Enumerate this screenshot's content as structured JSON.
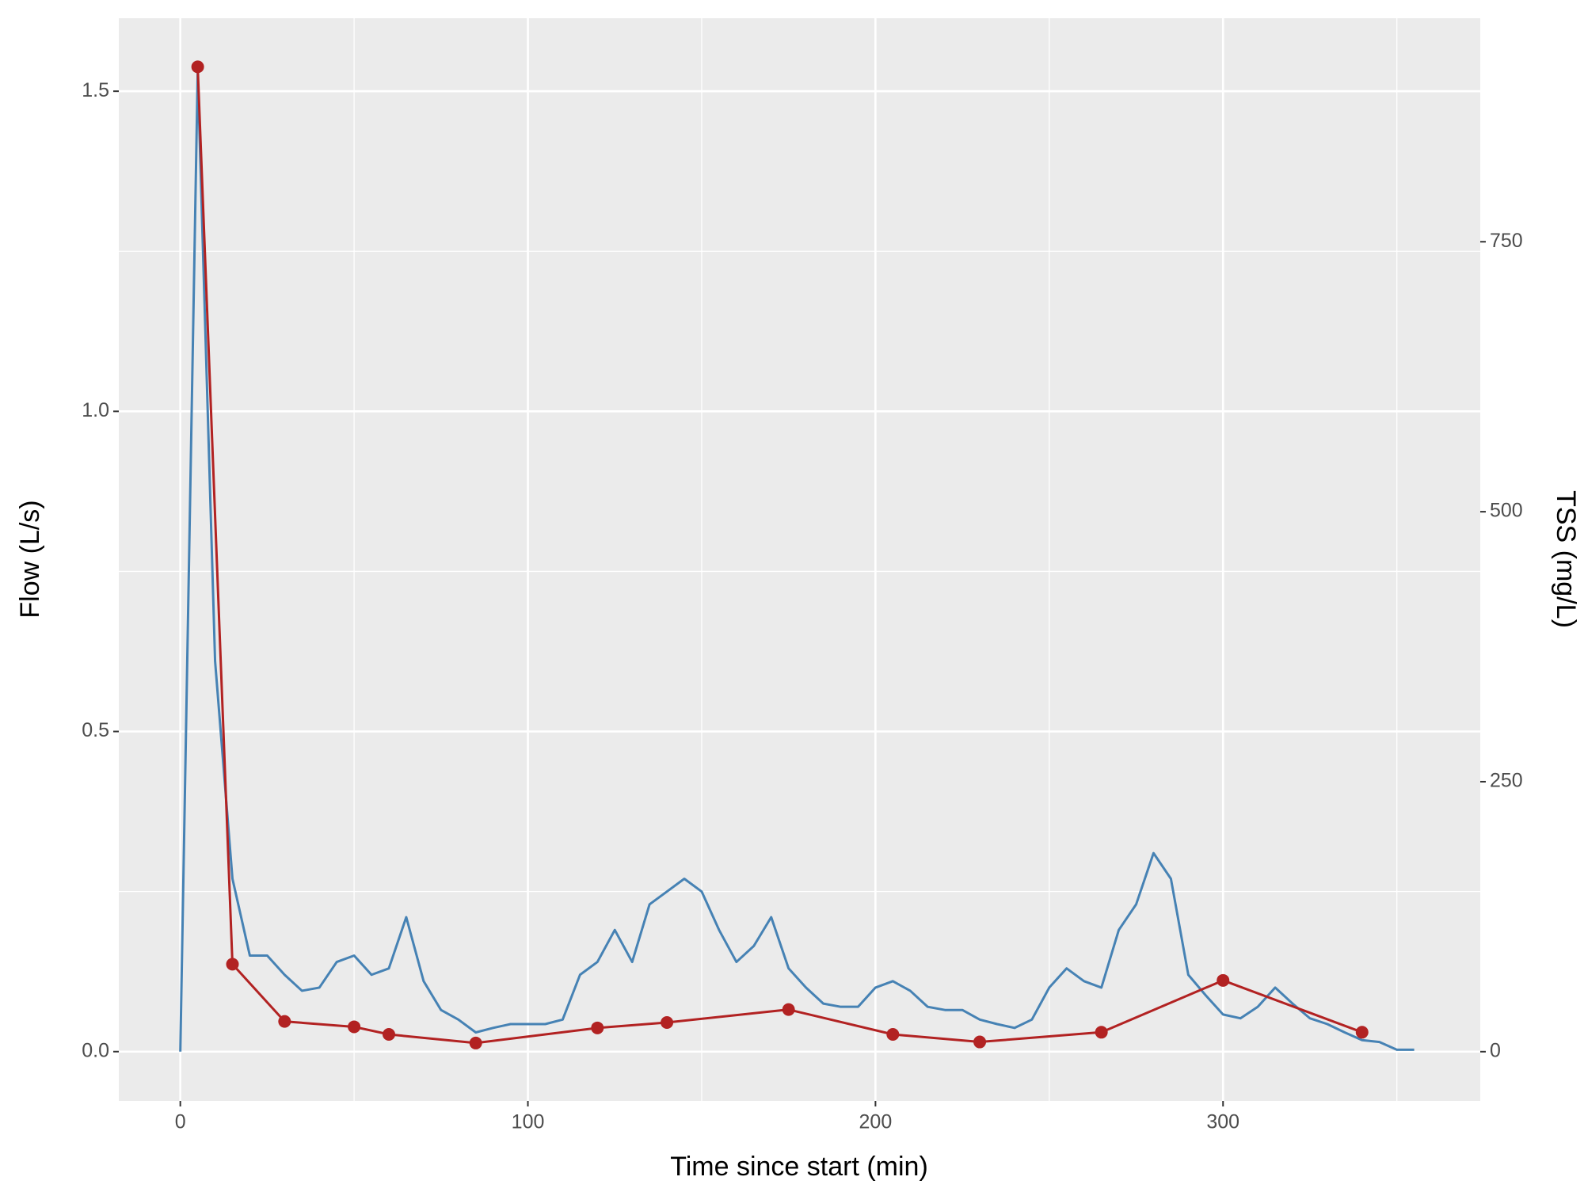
{
  "chart_data": {
    "type": "line",
    "x_label": "Time since start (min)",
    "y_label": "Flow (L/s)",
    "y2_label": "TSS (mg/L)",
    "xlim": [
      -17.7,
      374
    ],
    "ylim": [
      -0.077,
      1.614
    ],
    "y2lim": [
      -45.6,
      957
    ],
    "xticks": [
      0,
      100,
      200,
      300
    ],
    "yticks": [
      {
        "value": 0,
        "label": "0.0"
      },
      0.5,
      {
        "value": 1,
        "label": "1.0"
      },
      1.5
    ],
    "y2ticks": [
      0,
      250,
      500,
      750
    ],
    "x_minor_grid": [
      50,
      150,
      250,
      350
    ],
    "y_minor_grid": [
      0.25,
      0.75,
      1.25
    ],
    "grid": true,
    "series": [
      {
        "name": "Flow",
        "color": "#4682b4",
        "markers": false,
        "x": [
          0,
          5,
          10,
          15,
          20,
          25,
          30,
          35,
          40,
          45,
          50,
          55,
          60,
          65,
          70,
          75,
          80,
          85,
          90,
          95,
          100,
          105,
          110,
          115,
          120,
          125,
          130,
          135,
          140,
          145,
          150,
          155,
          160,
          165,
          170,
          175,
          180,
          185,
          190,
          195,
          200,
          205,
          210,
          215,
          220,
          225,
          230,
          235,
          240,
          245,
          250,
          255,
          260,
          265,
          270,
          275,
          280,
          285,
          290,
          295,
          300,
          305,
          310,
          315,
          320,
          325,
          330,
          335,
          340,
          345,
          350,
          355
        ],
        "values": [
          0,
          1.53,
          0.61,
          0.27,
          0.15,
          0.15,
          0.12,
          0.095,
          0.1,
          0.14,
          0.15,
          0.12,
          0.13,
          0.21,
          0.11,
          0.065,
          0.05,
          0.03,
          0.037,
          0.043,
          0.043,
          0.043,
          0.05,
          0.12,
          0.14,
          0.19,
          0.14,
          0.23,
          0.25,
          0.27,
          0.25,
          0.19,
          0.14,
          0.165,
          0.21,
          0.13,
          0.1,
          0.075,
          0.07,
          0.07,
          0.1,
          0.11,
          0.095,
          0.07,
          0.065,
          0.065,
          0.05,
          0.043,
          0.037,
          0.05,
          0.1,
          0.13,
          0.11,
          0.1,
          0.19,
          0.23,
          0.31,
          0.27,
          0.12,
          0.088,
          0.058,
          0.052,
          0.07,
          0.1,
          0.075,
          0.052,
          0.043,
          0.03,
          0.018,
          0.015,
          0.003,
          0.003
        ]
      },
      {
        "name": "TSS",
        "color": "#b22222",
        "markers": true,
        "axis": "y2",
        "x": [
          5,
          15,
          30,
          50,
          60,
          85,
          120,
          140,
          175,
          205,
          230,
          265,
          300,
          340
        ],
        "values": [
          912,
          81,
          28,
          23,
          16,
          8,
          22,
          27,
          39,
          16,
          9,
          18,
          66,
          18
        ]
      }
    ]
  }
}
